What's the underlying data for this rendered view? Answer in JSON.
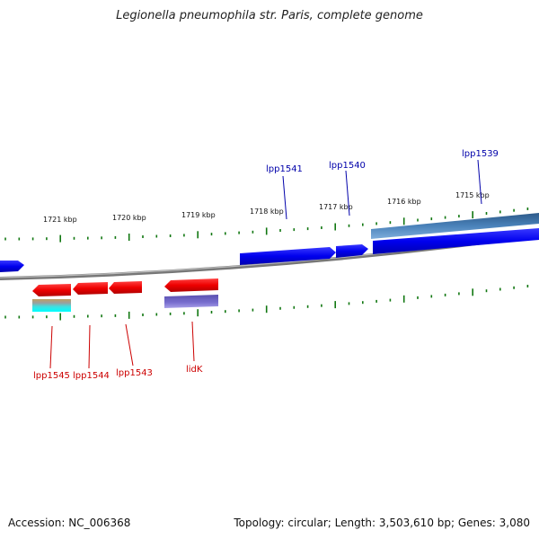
{
  "title": "Legionella pneumophila str. Paris, complete genome",
  "footer": {
    "accession": "Accession: NC_006368",
    "summary": "Topology: circular; Length: 3,503,610 bp; Genes: 3,080"
  },
  "colors": {
    "forward_gene": "#0000ee",
    "reverse_gene": "#ee0000",
    "forward_label": "#0000aa",
    "reverse_label": "#cc0000",
    "tick": "#117711",
    "backbone": "#888888"
  },
  "kbp_labels": [
    "1721 kbp",
    "1720 kbp",
    "1719 kbp",
    "1718 kbp",
    "1717 kbp",
    "1716 kbp",
    "1715 kbp"
  ],
  "forward_gene_labels": [
    "lpp1541",
    "lpp1540",
    "lpp1539"
  ],
  "reverse_gene_labels": [
    "lpp1545",
    "lpp1544",
    "lpp1543",
    "lidK"
  ]
}
